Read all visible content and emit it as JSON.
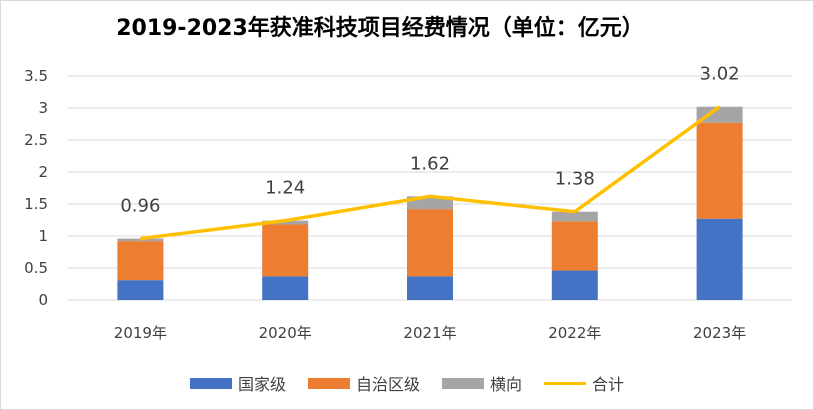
{
  "chart_data": {
    "type": "bar",
    "title": "2019-2023年获准科技项目经费情况（单位：亿元）",
    "categories": [
      "2019年",
      "2020年",
      "2021年",
      "2022年",
      "2023年"
    ],
    "series": [
      {
        "name": "国家级",
        "type": "bar",
        "stacked": true,
        "color": "#4472c4",
        "values": [
          0.31,
          0.37,
          0.37,
          0.46,
          1.27
        ]
      },
      {
        "name": "自治区级",
        "type": "bar",
        "stacked": true,
        "color": "#ed7d31",
        "values": [
          0.61,
          0.81,
          1.05,
          0.77,
          1.5
        ]
      },
      {
        "name": "横向",
        "type": "bar",
        "stacked": true,
        "color": "#a5a5a5",
        "values": [
          0.04,
          0.06,
          0.2,
          0.15,
          0.25
        ]
      },
      {
        "name": "合计",
        "type": "line",
        "color": "#ffc000",
        "values": [
          0.96,
          1.24,
          1.62,
          1.38,
          3.02
        ]
      }
    ],
    "data_labels": [
      "0.96",
      "1.24",
      "1.62",
      "1.38",
      "3.02"
    ],
    "yticks": [
      "0",
      "0.5",
      "1",
      "1.5",
      "2",
      "2.5",
      "3",
      "3.5"
    ],
    "ylim": [
      0,
      3.5
    ],
    "grid": true,
    "legend": "bottom"
  }
}
